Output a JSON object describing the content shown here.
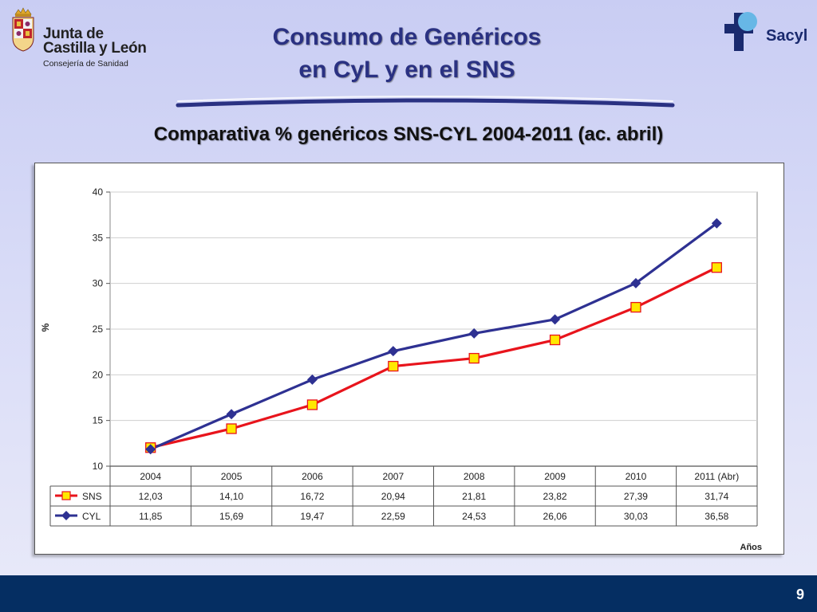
{
  "header": {
    "org_line1": "Junta de",
    "org_line2": "Castilla y León",
    "org_line3": "Consejería de Sanidad",
    "brand_right": "Sacyl",
    "title_line1": "Consumo de Genéricos",
    "title_line2": "en CyL y en el SNS"
  },
  "chart_heading": "Comparativa % genéricos SNS-CYL 2004-2011 (ac. abril)",
  "footer": {
    "page_number": "9"
  },
  "colors": {
    "sns": "#e8141c",
    "cyl": "#2e3192",
    "footer": "#052e62",
    "title": "#2a3182"
  },
  "chart_data": {
    "type": "line",
    "categories": [
      "2004",
      "2005",
      "2006",
      "2007",
      "2008",
      "2009",
      "2010",
      "2011 (Abr)"
    ],
    "series": [
      {
        "name": "SNS",
        "values": [
          12.03,
          14.1,
          16.72,
          20.94,
          21.81,
          23.82,
          27.39,
          31.74
        ],
        "labels": [
          "12,03",
          "14,10",
          "16,72",
          "20,94",
          "21,81",
          "23,82",
          "27,39",
          "31,74"
        ],
        "color": "#e8141c",
        "marker": "square"
      },
      {
        "name": "CYL",
        "values": [
          11.85,
          15.69,
          19.47,
          22.59,
          24.53,
          26.06,
          30.03,
          36.58
        ],
        "labels": [
          "11,85",
          "15,69",
          "19,47",
          "22,59",
          "24,53",
          "26,06",
          "30,03",
          "36,58"
        ],
        "color": "#2e3192",
        "marker": "diamond"
      }
    ],
    "ylabel": "%",
    "xlabel": "Años",
    "ylim": [
      10,
      40
    ],
    "yticks": [
      10,
      15,
      20,
      25,
      30,
      35,
      40
    ],
    "grid": true,
    "data_table": true
  }
}
